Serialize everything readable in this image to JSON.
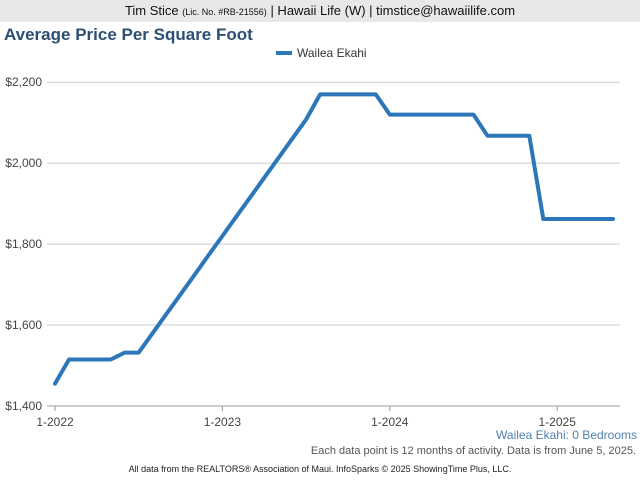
{
  "header": {
    "name": "Tim Stice",
    "license": "(Lic. No. #RB-21556)",
    "rest": "| Hawaii Life (W) | timstice@hawaiilife.com"
  },
  "footer": {
    "subtitle": "Wailea Ekahi: 0 Bedrooms",
    "data_note": "Each data point is 12 months of activity. Data is from June 5, 2025.",
    "source": "All data from the REALTORS® Association of Maui. InfoSparks © 2025 ShowingTime Plus, LLC."
  },
  "chart_data": {
    "type": "line",
    "title": "Average Price Per Square Foot",
    "xlabel": "",
    "ylabel": "",
    "x_ticks": [
      "1-2022",
      "1-2023",
      "1-2024",
      "1-2025"
    ],
    "y_ticks": [
      "$1,400",
      "$1,600",
      "$1,800",
      "$2,000",
      "$2,200"
    ],
    "ylim": [
      1400,
      2250
    ],
    "grid": true,
    "legend_position": "top-center",
    "series": [
      {
        "name": "Wailea Ekahi",
        "color": "#2c77b9",
        "x": [
          "2022-01",
          "2022-02",
          "2022-03",
          "2022-04",
          "2022-05",
          "2022-06",
          "2022-07",
          "2022-08",
          "2022-09",
          "2022-10",
          "2022-11",
          "2022-12",
          "2023-01",
          "2023-02",
          "2023-03",
          "2023-04",
          "2023-05",
          "2023-06",
          "2023-07",
          "2023-08",
          "2023-09",
          "2023-10",
          "2023-11",
          "2023-12",
          "2024-01",
          "2024-02",
          "2024-03",
          "2024-04",
          "2024-05",
          "2024-06",
          "2024-07",
          "2024-08",
          "2024-09",
          "2024-10",
          "2024-11",
          "2024-12",
          "2025-01",
          "2025-02",
          "2025-03",
          "2025-04",
          "2025-05"
        ],
        "values": [
          1455,
          1515,
          1515,
          1515,
          1515,
          1532,
          1532,
          1580,
          1628,
          1676,
          1724,
          1772,
          1820,
          1868,
          1916,
          1964,
          2012,
          2060,
          2108,
          2170,
          2170,
          2170,
          2170,
          2170,
          2120,
          2120,
          2120,
          2120,
          2120,
          2120,
          2120,
          2068,
          2068,
          2068,
          2068,
          1862,
          1862,
          1862,
          1862,
          1862,
          1862
        ]
      }
    ]
  }
}
